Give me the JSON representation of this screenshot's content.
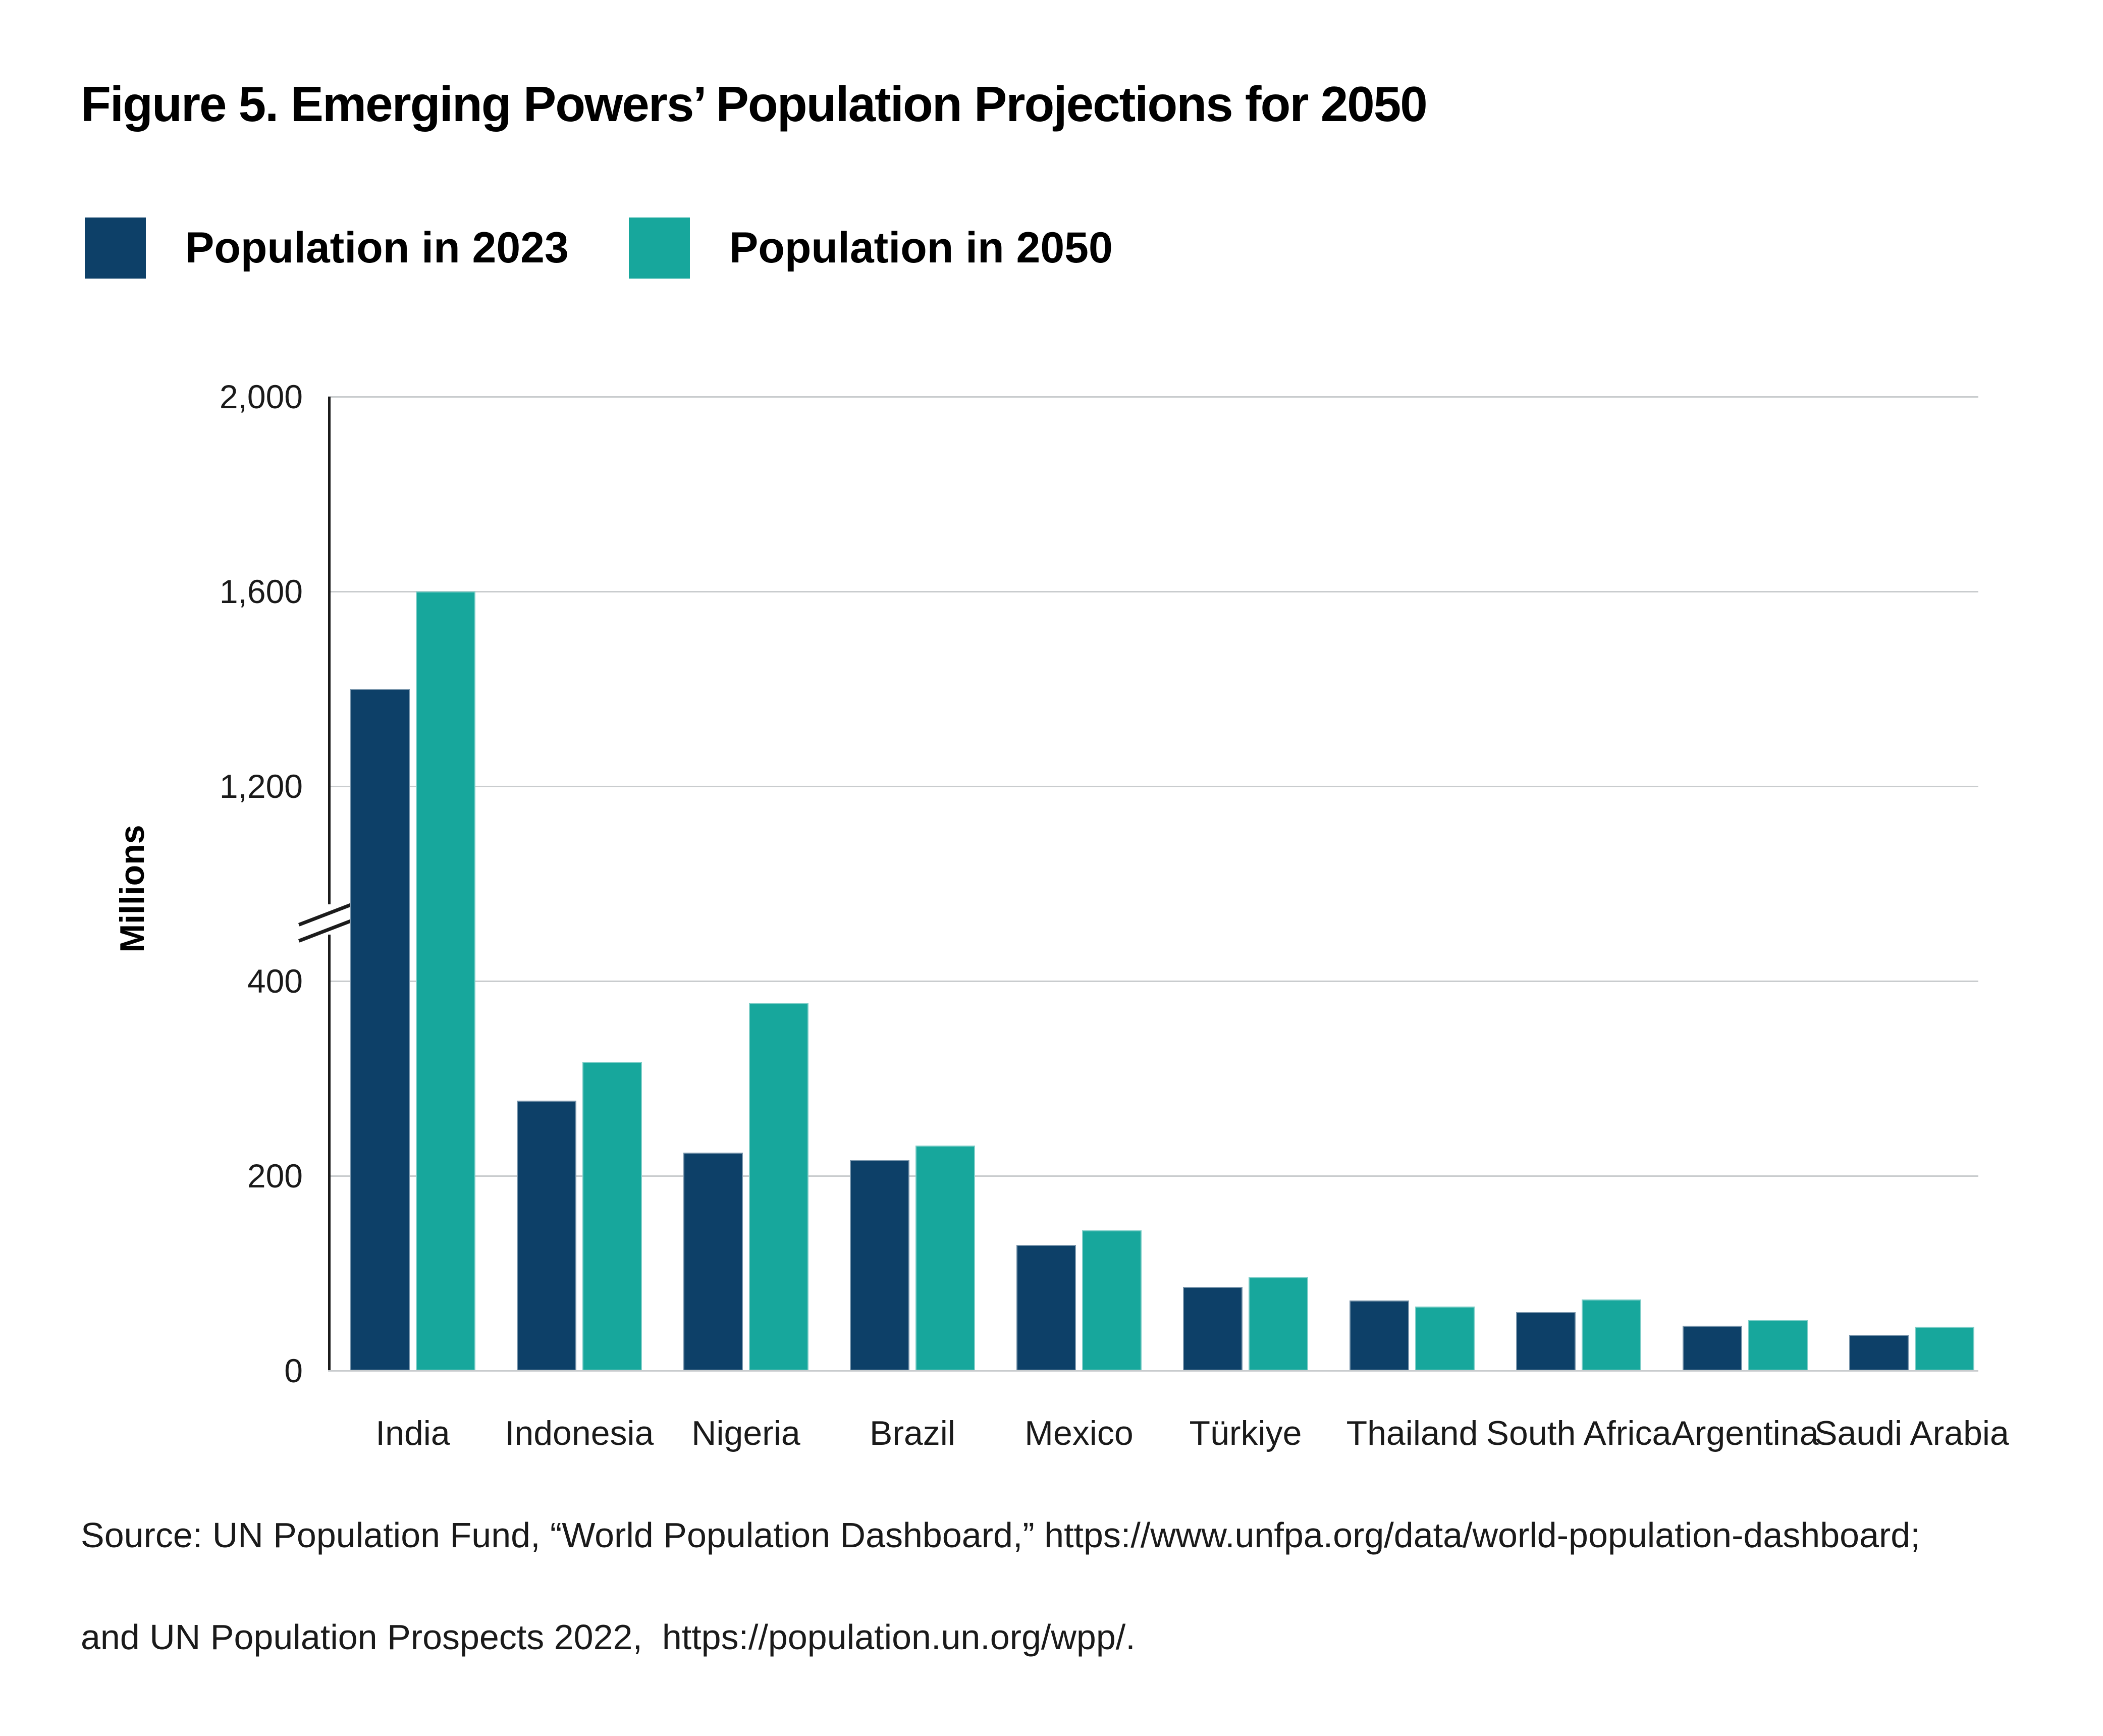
{
  "figure": {
    "title": "Figure 5. Emerging Powers’ Population Projections for 2050",
    "source_line1": "Source: UN Population Fund, “World Population Dashboard,” https://www.unfpa.org/data/world-population-dashboard;",
    "source_line2": "and UN Population Prospects 2022,  https://population.un.org/wpp/."
  },
  "legend": [
    {
      "label": "Population in 2023",
      "color": "#0d4068"
    },
    {
      "label": "Population in 2050",
      "color": "#17a79c"
    }
  ],
  "y_axis": {
    "label": "Millions",
    "ticks": [
      {
        "label": "2,000",
        "value": 2000
      },
      {
        "label": "1,600",
        "value": 1600
      },
      {
        "label": "1,200",
        "value": 1200
      },
      {
        "label": "400",
        "value": 400
      },
      {
        "label": "200",
        "value": 200
      },
      {
        "label": "0",
        "value": 0
      }
    ],
    "axis_break_between": [
      400,
      1200
    ]
  },
  "chart_data": {
    "type": "bar",
    "title": "Figure 5. Emerging Powers’ Population Projections for 2050",
    "ylabel": "Millions",
    "grid": true,
    "legend_position": "top-left",
    "yticks": [
      0,
      200,
      400,
      1200,
      1600,
      2000
    ],
    "axis_break": {
      "lower_max": 400,
      "upper_min": 1200
    },
    "categories": [
      "India",
      "Indonesia",
      "Nigeria",
      "Brazil",
      "Mexico",
      "Türkiye",
      "Thailand",
      "South Africa",
      "Argentina",
      "Saudi Arabia"
    ],
    "series": [
      {
        "name": "Population in 2023",
        "color": "#0d4068",
        "values": [
          1400,
          277,
          224,
          216,
          129,
          86,
          72,
          60,
          46,
          37
        ]
      },
      {
        "name": "Population in 2050",
        "color": "#17a79c",
        "values": [
          1600,
          317,
          377,
          231,
          144,
          96,
          66,
          73,
          52,
          45
        ]
      }
    ]
  }
}
